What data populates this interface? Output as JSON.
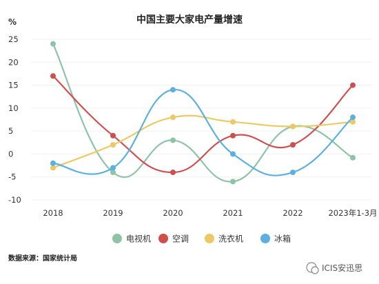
{
  "chart_data": {
    "type": "line",
    "title": "中国主要大家电产量增速",
    "ylabel": "%",
    "ylim": [
      -10,
      25
    ],
    "yticks": [
      25,
      20,
      15,
      10,
      5,
      0,
      -5,
      -10
    ],
    "categories": [
      "2018",
      "2019",
      "2020",
      "2021",
      "2022",
      "2023年1-3月"
    ],
    "smooth": true,
    "grid": true,
    "legend_position": "bottom",
    "series": [
      {
        "name": "电视机",
        "color": "#8dc3a7",
        "values": [
          24,
          -4,
          3,
          -6,
          6,
          -0.8
        ]
      },
      {
        "name": "空调",
        "color": "#cf4e4e",
        "values": [
          17,
          4,
          -4,
          4,
          2,
          15
        ]
      },
      {
        "name": "洗衣机",
        "color": "#ebc964",
        "values": [
          -3,
          2,
          8,
          7,
          6,
          7
        ]
      },
      {
        "name": "冰箱",
        "color": "#5cb0e0",
        "values": [
          -2,
          -3,
          14,
          0,
          -4,
          8
        ]
      }
    ]
  },
  "footer": {
    "source": "数据来源：国家统计局",
    "brand": "ICIS安迅思",
    "brand_icon": "wechat-icon"
  }
}
